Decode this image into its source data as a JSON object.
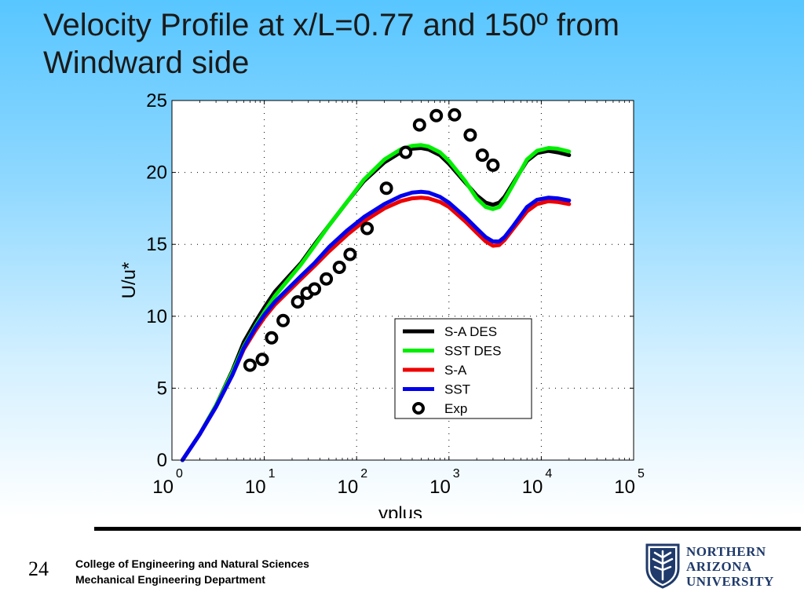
{
  "slide": {
    "title": "Velocity Profile at x/L=0.77 and 150º from Windward side",
    "page_number": "24",
    "footer_line1": "College of Engineering and Natural Sciences",
    "footer_line2": "Mechanical Engineering Department",
    "logo_lines": [
      "NORTHERN",
      "ARIZONA",
      "UNIVERSITY"
    ],
    "colors": {
      "logo_blue": "#1f3a6b"
    }
  },
  "chart_data": {
    "type": "line",
    "xlabel": "yplus",
    "ylabel": "U/u*",
    "xscale": "log",
    "xlim": [
      1,
      100000
    ],
    "ylim": [
      0,
      25
    ],
    "x_tick_values": [
      1,
      10,
      100,
      1000,
      10000,
      100000
    ],
    "x_tick_bases": [
      "10",
      "10",
      "10",
      "10",
      "10",
      "10"
    ],
    "x_tick_exponents": [
      "0",
      "1",
      "2",
      "3",
      "4",
      "5"
    ],
    "y_ticks": [
      "0",
      "5",
      "10",
      "15",
      "20",
      "25"
    ],
    "grid": true,
    "legend_position": "lower-right",
    "series": [
      {
        "name": "S-A DES",
        "color": "#000000",
        "kind": "line",
        "points": [
          [
            1.3,
            0
          ],
          [
            2,
            1.8
          ],
          [
            3,
            3.8
          ],
          [
            4.5,
            6.2
          ],
          [
            6,
            8.2
          ],
          [
            8,
            9.6
          ],
          [
            10,
            10.6
          ],
          [
            13,
            11.7
          ],
          [
            18,
            12.7
          ],
          [
            25,
            13.7
          ],
          [
            35,
            15
          ],
          [
            50,
            16.3
          ],
          [
            80,
            18
          ],
          [
            120,
            19.4
          ],
          [
            200,
            20.7
          ],
          [
            300,
            21.4
          ],
          [
            400,
            21.65
          ],
          [
            500,
            21.7
          ],
          [
            600,
            21.6
          ],
          [
            800,
            21.2
          ],
          [
            1000,
            20.6
          ],
          [
            1500,
            19.3
          ],
          [
            2000,
            18.4
          ],
          [
            2500,
            17.9
          ],
          [
            3000,
            17.75
          ],
          [
            3500,
            17.9
          ],
          [
            4000,
            18.3
          ],
          [
            5000,
            19.3
          ],
          [
            7000,
            20.8
          ],
          [
            9000,
            21.35
          ],
          [
            12000,
            21.5
          ],
          [
            15000,
            21.4
          ],
          [
            20000,
            21.2
          ]
        ]
      },
      {
        "name": "SST DES",
        "color": "#00ee00",
        "kind": "line",
        "points": [
          [
            1.3,
            0
          ],
          [
            2,
            1.8
          ],
          [
            3,
            3.8
          ],
          [
            4.5,
            6.1
          ],
          [
            6,
            7.9
          ],
          [
            8,
            9.3
          ],
          [
            10,
            10.3
          ],
          [
            13,
            11.4
          ],
          [
            18,
            12.5
          ],
          [
            25,
            13.6
          ],
          [
            35,
            14.9
          ],
          [
            50,
            16.3
          ],
          [
            80,
            18
          ],
          [
            120,
            19.5
          ],
          [
            200,
            20.9
          ],
          [
            300,
            21.6
          ],
          [
            400,
            21.85
          ],
          [
            500,
            21.9
          ],
          [
            600,
            21.8
          ],
          [
            800,
            21.4
          ],
          [
            1000,
            20.8
          ],
          [
            1500,
            19.4
          ],
          [
            2000,
            18.2
          ],
          [
            2500,
            17.6
          ],
          [
            3000,
            17.45
          ],
          [
            3500,
            17.6
          ],
          [
            4000,
            18.1
          ],
          [
            5000,
            19.2
          ],
          [
            7000,
            20.9
          ],
          [
            9000,
            21.5
          ],
          [
            12000,
            21.7
          ],
          [
            15000,
            21.65
          ],
          [
            20000,
            21.45
          ]
        ]
      },
      {
        "name": "S-A",
        "color": "#ee0000",
        "kind": "line",
        "points": [
          [
            1.3,
            0
          ],
          [
            2,
            1.8
          ],
          [
            3,
            3.7
          ],
          [
            4.5,
            5.9
          ],
          [
            6,
            7.7
          ],
          [
            8,
            9
          ],
          [
            10,
            9.9
          ],
          [
            13,
            10.8
          ],
          [
            18,
            11.7
          ],
          [
            25,
            12.6
          ],
          [
            35,
            13.5
          ],
          [
            50,
            14.5
          ],
          [
            80,
            15.7
          ],
          [
            120,
            16.6
          ],
          [
            200,
            17.5
          ],
          [
            300,
            18
          ],
          [
            400,
            18.2
          ],
          [
            500,
            18.25
          ],
          [
            600,
            18.2
          ],
          [
            800,
            17.95
          ],
          [
            1000,
            17.6
          ],
          [
            1500,
            16.6
          ],
          [
            2000,
            15.8
          ],
          [
            2500,
            15.2
          ],
          [
            3000,
            14.9
          ],
          [
            3500,
            14.95
          ],
          [
            4000,
            15.3
          ],
          [
            5000,
            16.1
          ],
          [
            7000,
            17.3
          ],
          [
            9000,
            17.8
          ],
          [
            12000,
            18
          ],
          [
            15000,
            17.95
          ],
          [
            20000,
            17.8
          ]
        ]
      },
      {
        "name": "SST",
        "color": "#0000ee",
        "kind": "line",
        "points": [
          [
            1.3,
            0
          ],
          [
            2,
            1.8
          ],
          [
            3,
            3.7
          ],
          [
            4.5,
            5.9
          ],
          [
            6,
            7.8
          ],
          [
            8,
            9.2
          ],
          [
            10,
            10.1
          ],
          [
            13,
            11
          ],
          [
            18,
            11.9
          ],
          [
            25,
            12.8
          ],
          [
            35,
            13.7
          ],
          [
            50,
            14.8
          ],
          [
            80,
            16
          ],
          [
            120,
            16.9
          ],
          [
            200,
            17.8
          ],
          [
            300,
            18.35
          ],
          [
            400,
            18.6
          ],
          [
            500,
            18.65
          ],
          [
            600,
            18.6
          ],
          [
            800,
            18.3
          ],
          [
            1000,
            17.9
          ],
          [
            1500,
            16.9
          ],
          [
            2000,
            16.1
          ],
          [
            2500,
            15.5
          ],
          [
            3000,
            15.2
          ],
          [
            3500,
            15.2
          ],
          [
            4000,
            15.5
          ],
          [
            5000,
            16.3
          ],
          [
            7000,
            17.6
          ],
          [
            9000,
            18.1
          ],
          [
            12000,
            18.25
          ],
          [
            15000,
            18.2
          ],
          [
            20000,
            18.05
          ]
        ]
      },
      {
        "name": "Exp",
        "color": "#000000",
        "kind": "marker",
        "points": [
          [
            7,
            6.6
          ],
          [
            9.5,
            7
          ],
          [
            12,
            8.5
          ],
          [
            16,
            9.7
          ],
          [
            23,
            11
          ],
          [
            29,
            11.6
          ],
          [
            35,
            11.9
          ],
          [
            47,
            12.6
          ],
          [
            65,
            13.4
          ],
          [
            85,
            14.3
          ],
          [
            130,
            16.1
          ],
          [
            210,
            18.9
          ],
          [
            340,
            21.4
          ],
          [
            480,
            23.3
          ],
          [
            730,
            23.95
          ],
          [
            1150,
            24
          ],
          [
            1700,
            22.6
          ],
          [
            2300,
            21.2
          ],
          [
            3000,
            20.5
          ]
        ]
      }
    ]
  }
}
